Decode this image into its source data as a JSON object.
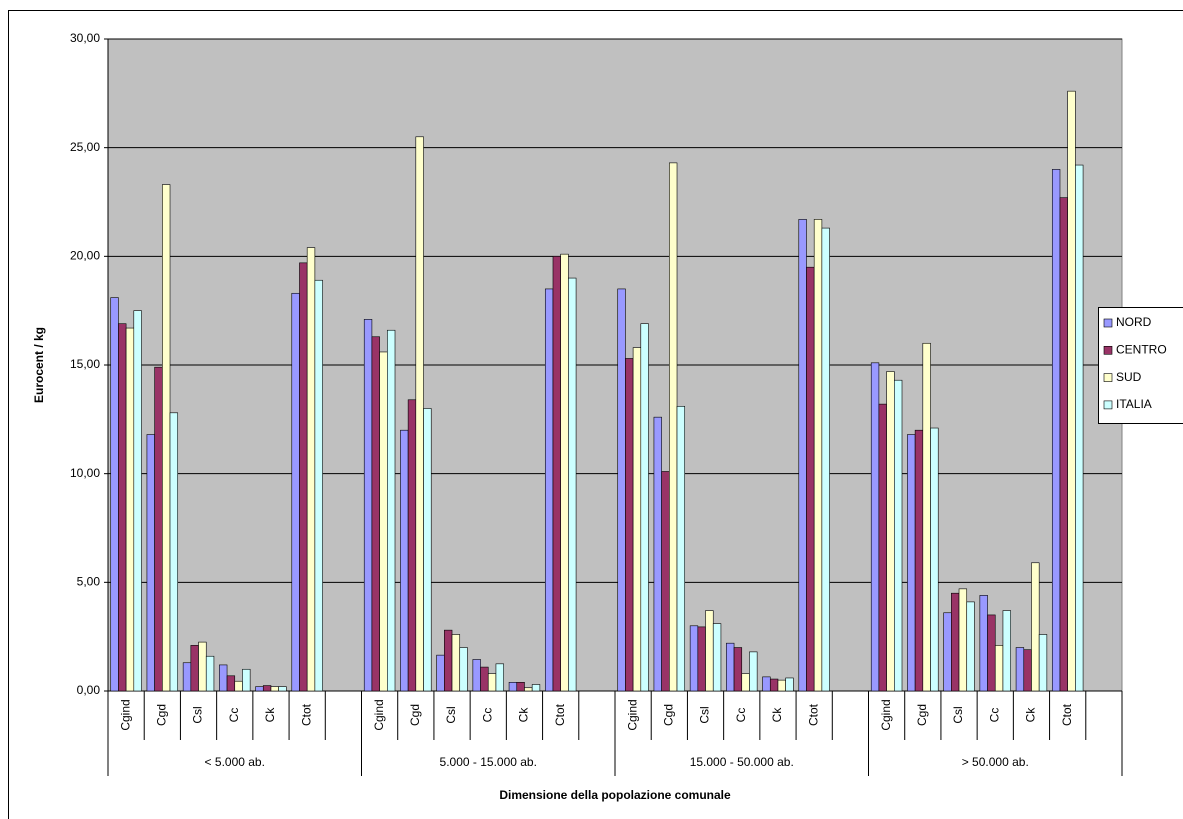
{
  "chart_data": {
    "type": "bar",
    "y_label": "Eurocent / kg",
    "x_label": "Dimensione della popolazione comunale",
    "categories": [
      "Cgind",
      "Cgd",
      "Csl",
      "Cc",
      "Ck",
      "Ctot",
      null,
      "Cgind",
      "Cgd",
      "Csl",
      "Cc",
      "Ck",
      "Ctot",
      null,
      "Cgind",
      "Cgd",
      "Csl",
      "Cc",
      "Ck",
      "Ctot",
      null,
      "Cgind",
      "Cgd",
      "Csl",
      "Cc",
      "Ck",
      "Ctot",
      null
    ],
    "groups": [
      "< 5.000 ab.",
      "5.000 - 15.000 ab.",
      "15.000 - 50.000 ab.",
      "> 50.000 ab."
    ],
    "series": [
      {
        "name": "NORD",
        "color": "#9999ff",
        "values": [
          18.1,
          11.8,
          1.3,
          1.2,
          0.2,
          18.3,
          null,
          17.1,
          12.0,
          1.65,
          1.45,
          0.4,
          18.5,
          null,
          18.5,
          12.6,
          3.0,
          2.2,
          0.65,
          21.7,
          null,
          15.1,
          11.8,
          3.6,
          4.4,
          2.0,
          24.0,
          null
        ]
      },
      {
        "name": "CENTRO",
        "color": "#993366",
        "values": [
          16.9,
          14.9,
          2.1,
          0.7,
          0.25,
          19.7,
          null,
          16.3,
          13.4,
          2.8,
          1.1,
          0.4,
          20.0,
          null,
          15.3,
          10.1,
          2.95,
          2.0,
          0.55,
          19.5,
          null,
          13.2,
          12.0,
          4.5,
          3.5,
          1.9,
          22.7,
          null
        ]
      },
      {
        "name": "SUD",
        "color": "#ffffcc",
        "values": [
          16.7,
          23.3,
          2.25,
          0.45,
          0.2,
          20.4,
          null,
          15.6,
          25.5,
          2.6,
          0.8,
          0.15,
          20.1,
          null,
          15.8,
          24.3,
          3.7,
          0.8,
          0.5,
          21.7,
          null,
          14.7,
          16.0,
          4.7,
          2.1,
          5.9,
          27.6,
          null
        ]
      },
      {
        "name": "ITALIA",
        "color": "#ccffff",
        "values": [
          17.5,
          12.8,
          1.6,
          1.0,
          0.2,
          18.9,
          null,
          16.6,
          13.0,
          2.0,
          1.25,
          0.3,
          19.0,
          null,
          16.9,
          13.1,
          3.1,
          1.8,
          0.6,
          21.3,
          null,
          14.3,
          12.1,
          4.1,
          3.7,
          2.6,
          24.2,
          null
        ]
      }
    ],
    "ylim": [
      0,
      30
    ],
    "yticks": [
      {
        "value": 0,
        "label": "0,00"
      },
      {
        "value": 5,
        "label": "5,00"
      },
      {
        "value": 10,
        "label": "10,00"
      },
      {
        "value": 15,
        "label": "15,00"
      },
      {
        "value": 20,
        "label": "20,00"
      },
      {
        "value": 25,
        "label": "25,00"
      },
      {
        "value": 30,
        "label": "30,00"
      }
    ],
    "grid": true,
    "legend": "right"
  }
}
